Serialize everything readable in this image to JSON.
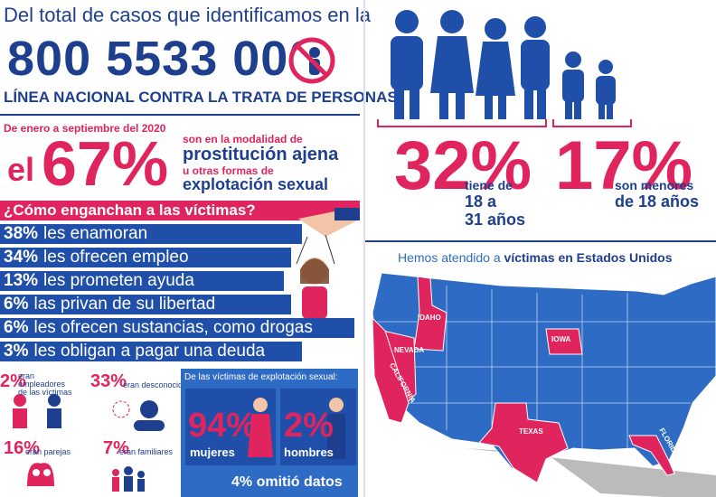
{
  "header": {
    "intro": "Del total de casos que identificamos en la",
    "phone": "800 5533 000",
    "line_name": "LÍNEA NACIONAL CONTRA LA TRATA DE PERSONAS"
  },
  "period": {
    "date": "De enero a septiembre del 2020",
    "el": "el",
    "percent": "67%",
    "text1": "son en la modalidad de",
    "text2": "prostitución ajena",
    "text3": "u otras formas de",
    "text4": "explotación sexual"
  },
  "hook": {
    "title": "¿Cómo enganchan a las víctimas?",
    "items": [
      [
        "38%",
        "les enamoran"
      ],
      [
        "34%",
        "les ofrecen empleo"
      ],
      [
        "13%",
        "les prometen ayuda"
      ],
      [
        "6%",
        "las privan de su libertad"
      ],
      [
        "6%",
        "les ofrecen sustancias, como drogas"
      ],
      [
        "3%",
        "les obligan a pagar una deuda"
      ]
    ]
  },
  "relations": [
    [
      "2%",
      "eran empleadores de las víctimas"
    ],
    [
      "33%",
      "eran desconocid@s"
    ],
    [
      "16%",
      "eran parejas"
    ],
    [
      "7%",
      "eran familiares"
    ]
  ],
  "sexual": {
    "title": "De las víctimas de explotación sexual:",
    "women_pct": "94%",
    "women": "mujeres",
    "men_pct": "2%",
    "men": "hombres",
    "omitted": "4% omitió datos"
  },
  "ages": {
    "adults_pct": "32%",
    "adults1": "tiene de",
    "adults2": "18 a",
    "adults3": "31 años",
    "minors_pct": "17%",
    "minors1": "son menores",
    "minors2": "de 18 años"
  },
  "map": {
    "title_start": "Hemos atendido a",
    "title_bold": "víctimas en Estados Unidos",
    "states": [
      "IDAHO",
      "NEVADA",
      "CALIFORNIA",
      "IOWA",
      "TEXAS",
      "FLORIDA"
    ]
  }
}
